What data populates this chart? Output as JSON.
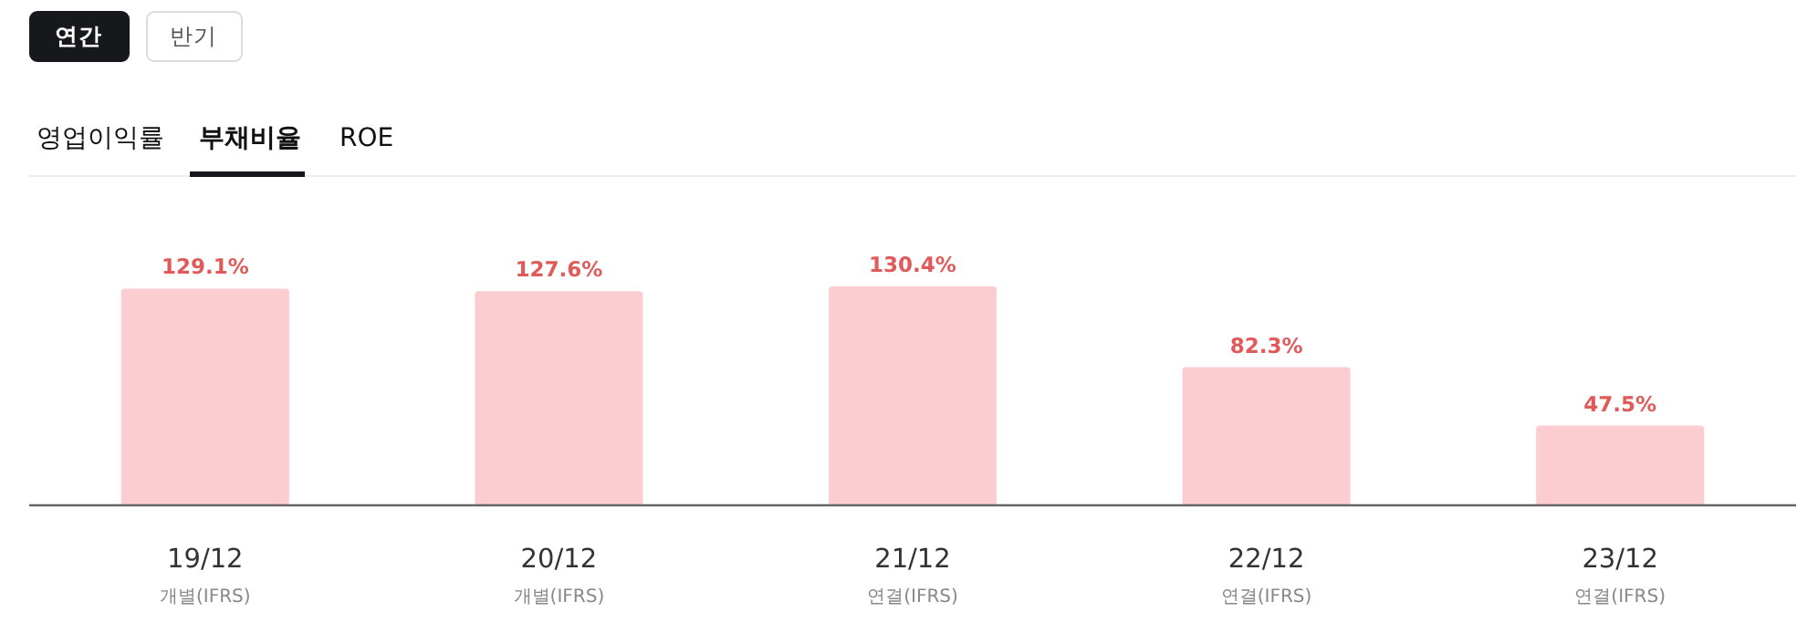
{
  "chart_data": {
    "type": "bar",
    "categories": [
      "19/12\n개별(IFRS)",
      "20/12\n개별(IFRS)",
      "21/12\n연결(IFRS)",
      "22/12\n연결(IFRS)",
      "23/12\n연결(IFRS)"
    ],
    "values": [
      129.1,
      127.6,
      130.4,
      82.3,
      47.5
    ],
    "value_labels": [
      "129.1%",
      "127.6%",
      "130.4%",
      "82.3%",
      "47.5%"
    ],
    "color": "#fccdd0",
    "annotations": [
      "연간",
      "반기",
      "영업이익률",
      "부채비율",
      "ROE"
    ]
  }
}
